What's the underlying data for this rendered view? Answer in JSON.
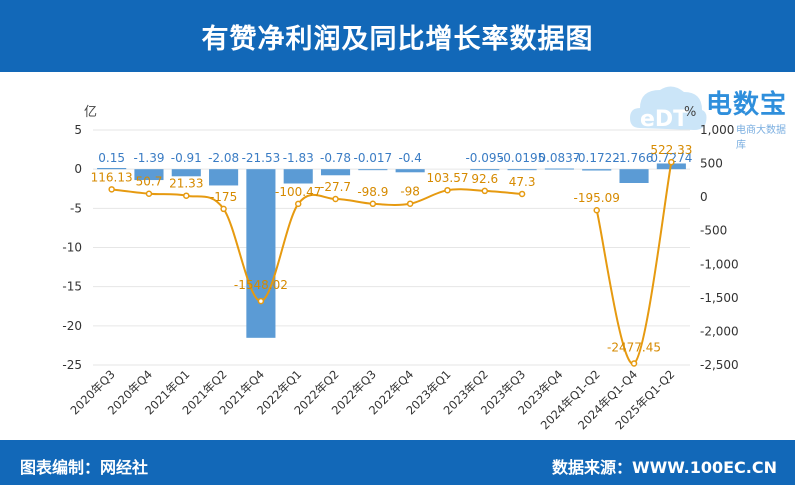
{
  "header": {
    "title": "有赞净利润及同比增长率数据图"
  },
  "footer": {
    "left": "图表编制：网经社",
    "right": "数据来源：WWW.100EC.CN"
  },
  "logo": {
    "brand": "电数宝",
    "sub": "电商大数据库",
    "mark": "eDT"
  },
  "colors": {
    "bar": "#5b9bd5",
    "line": "#e69a10",
    "header": "#1268b8"
  },
  "chart_data": {
    "type": "bar",
    "categories": [
      "2020年Q3",
      "2020年Q4",
      "2021年Q1",
      "2021年Q2",
      "2021年Q4",
      "2022年Q1",
      "2022年Q2",
      "2022年Q3",
      "2022年Q4",
      "2023年Q1",
      "2023年Q2",
      "2023年Q3",
      "2023年Q4",
      "2024年Q1-Q2",
      "2024年Q1-Q4",
      "2025年Q1-Q2"
    ],
    "series": [
      {
        "axis": "left",
        "unit": "亿",
        "values": [
          0.15,
          -1.39,
          -0.91,
          -2.08,
          -21.53,
          -1.83,
          -0.78,
          -0.017,
          -0.4,
          null,
          -0.095,
          -0.0195,
          0.0837,
          -0.1722,
          -1.766,
          0.7274
        ],
        "labels": [
          "0.15",
          "-1.39",
          "-0.91",
          "-2.08",
          "-21.53",
          "-1.83",
          "-0.78",
          "-0.017",
          "-0.4",
          "",
          "-0.095",
          "-0.0195",
          "0.0837",
          "-0.1722",
          "-1.766",
          "0.7274"
        ]
      },
      {
        "axis": "right",
        "type": "line",
        "unit": "%",
        "values": [
          116.13,
          50.7,
          21.33,
          -175,
          -1548.02,
          -100.47,
          -27.7,
          -98.9,
          -98,
          103.57,
          92.6,
          47.3,
          null,
          -195.09,
          -2477.45,
          522.33
        ],
        "labels": [
          "116.13",
          "50.7",
          "21.33",
          "-175",
          "-1548.02",
          "-100.47",
          "-27.7",
          "-98.9",
          "-98",
          "103.57",
          "92.6",
          "47.3",
          "",
          "-195.09",
          "-2477.45",
          "522.33"
        ]
      }
    ],
    "ylabel": "亿",
    "y2label": "%",
    "ylim": [
      -25,
      5
    ],
    "y2lim": [
      -2500,
      1000
    ],
    "yticks": [
      "5",
      "0",
      "-5",
      "-10",
      "-15",
      "-20",
      "-25"
    ],
    "y2ticks": [
      "1,000",
      "500",
      "0",
      "-500",
      "-1,000",
      "-1,500",
      "-2,000",
      "-2,500"
    ],
    "grid": true
  }
}
